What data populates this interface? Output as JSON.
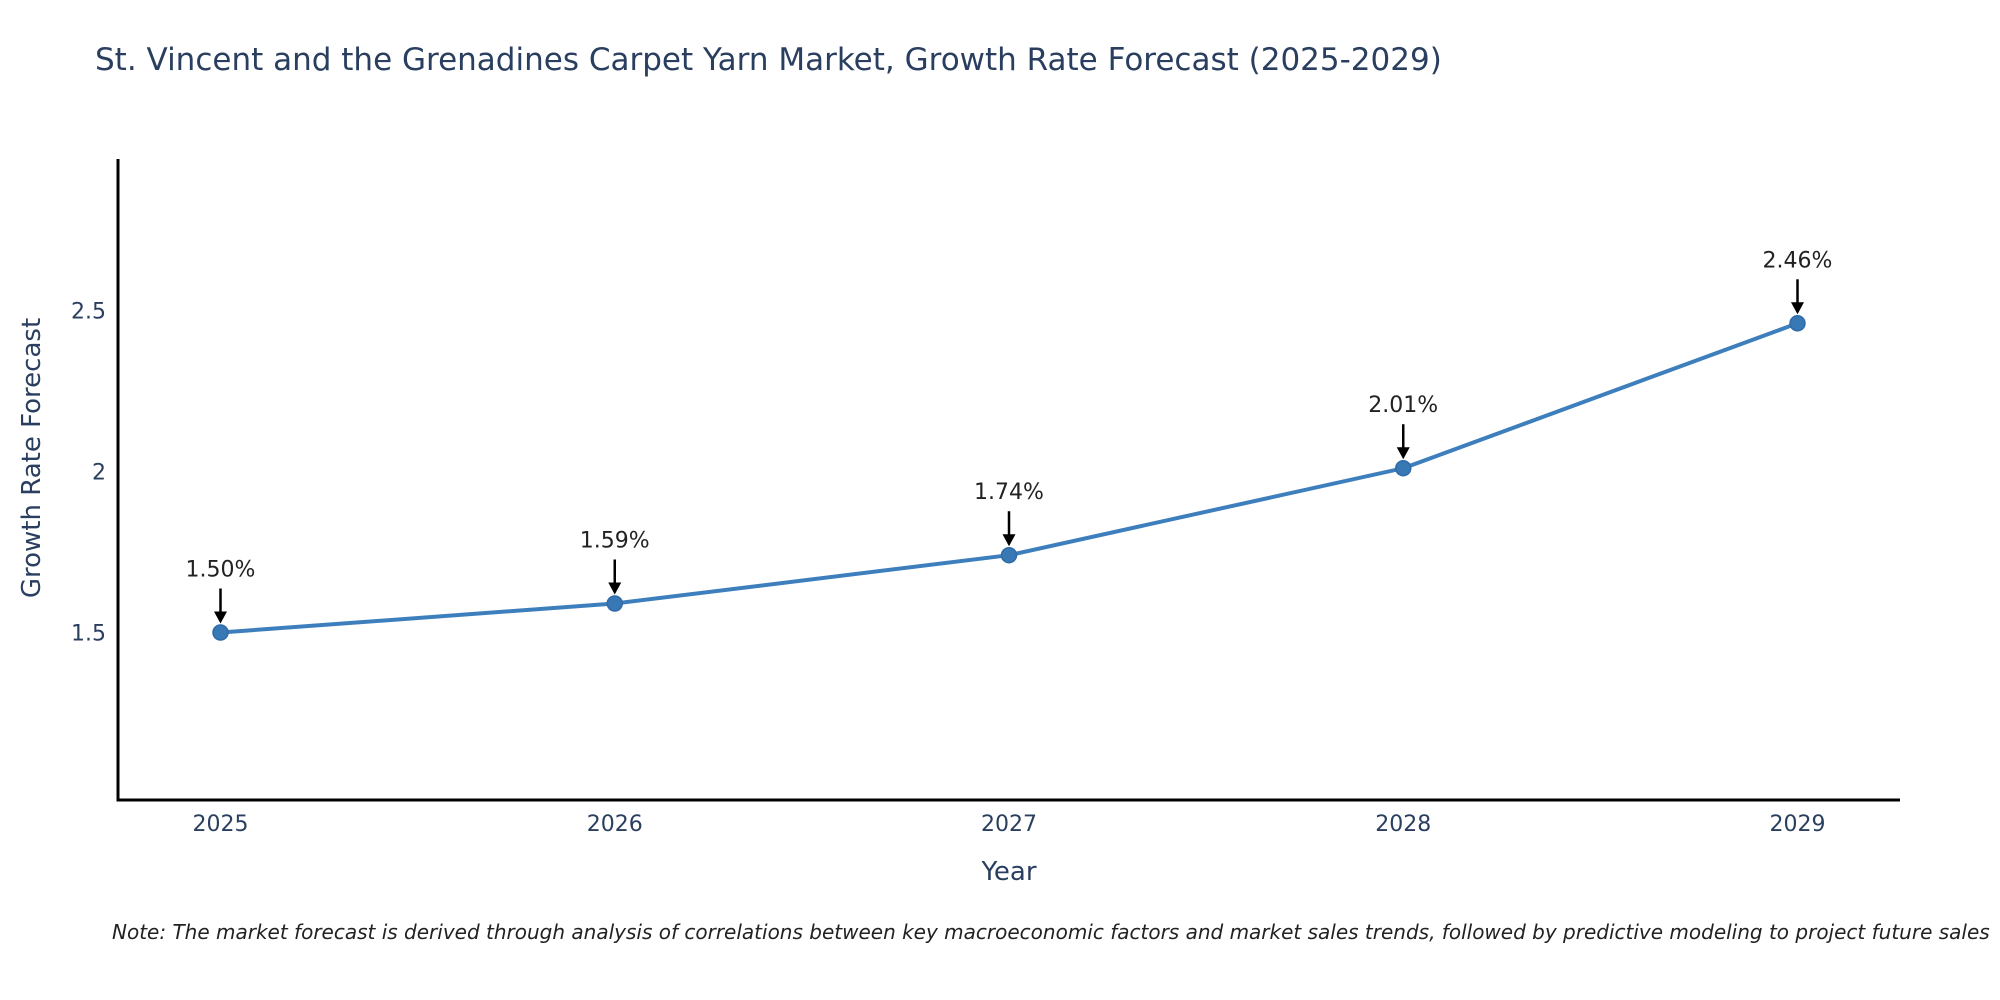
{
  "page": {
    "background_color": "#ffffff",
    "note": "Note: The market forecast is derived through analysis of correlations between key macroeconomic factors and market sales trends, followed by predictive modeling to project future sales"
  },
  "chart_data": {
    "type": "line",
    "title": "St. Vincent and the Grenadines Carpet Yarn Market, Growth Rate Forecast (2025-2029)",
    "xlabel": "Year",
    "ylabel": "Growth Rate Forecast",
    "x": [
      2025,
      2026,
      2027,
      2028,
      2029
    ],
    "y": [
      1.5,
      1.59,
      1.74,
      2.01,
      2.46
    ],
    "point_labels": [
      "1.50%",
      "1.59%",
      "1.74%",
      "2.01%",
      "2.46%"
    ],
    "x_tick_labels": [
      "2025",
      "2026",
      "2027",
      "2028",
      "2029"
    ],
    "y_ticks": [
      1.5,
      2,
      2.5
    ],
    "y_tick_labels": [
      "1.5",
      "2",
      "2.5"
    ],
    "xlim": [
      2024.74,
      2029.26
    ],
    "ylim": [
      0.98,
      2.97
    ],
    "grid": false,
    "legend": "none",
    "marker_style": "circle",
    "annotation_arrows": true,
    "colors": {
      "line": "#3d7ebd",
      "marker": "#3878b4",
      "marker_edge": "#2f6ba8",
      "axis": "#000000",
      "tick_text": "#2a3f5f",
      "title_text": "#2a3f5f",
      "axis_label_text": "#2a3f5f",
      "annotation_text": "#222222",
      "arrow": "#000000",
      "background": "#ffffff"
    }
  }
}
